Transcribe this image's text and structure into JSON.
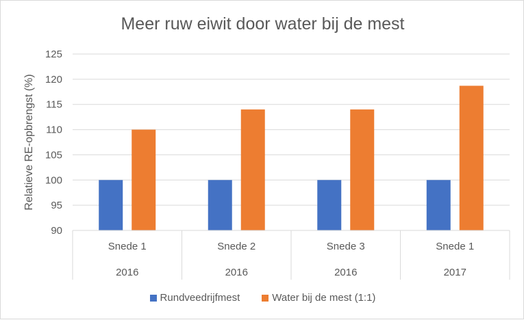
{
  "chart_data": {
    "type": "bar",
    "title": "Meer ruw eiwit door water bij de mest",
    "xlabel": "",
    "ylabel": "Relatieve RE-opbrengst (%)",
    "ylim": [
      90,
      125
    ],
    "yticks": [
      90,
      95,
      100,
      105,
      110,
      115,
      120,
      125
    ],
    "grid": true,
    "legend_position": "bottom",
    "categories": [
      {
        "label": "Snede 1",
        "group": "2016"
      },
      {
        "label": "Snede 2",
        "group": "2016"
      },
      {
        "label": "Snede 3",
        "group": "2016"
      },
      {
        "label": "Snede 1",
        "group": "2017"
      }
    ],
    "series": [
      {
        "name": "Rundveedrijfmest",
        "color": "#4472c4",
        "values": [
          100,
          100,
          100,
          100
        ]
      },
      {
        "name": "Water bij de mest (1:1)",
        "color": "#ed7d31",
        "values": [
          110,
          114,
          114,
          118.7
        ]
      }
    ]
  }
}
